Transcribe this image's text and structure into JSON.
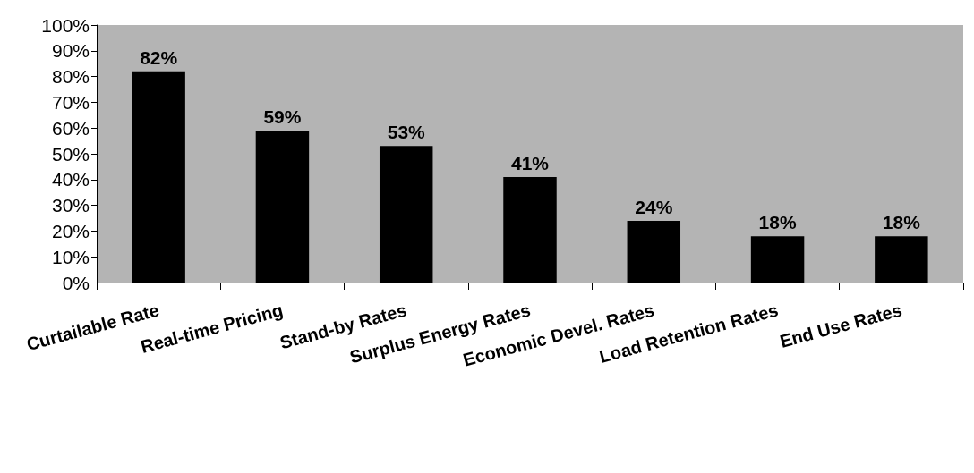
{
  "chart_data": {
    "type": "bar",
    "categories": [
      "Curtailable Rate",
      "Real-time Pricing",
      "Stand-by Rates",
      "Surplus Energy Rates",
      "Economic Devel. Rates",
      "Load Retention Rates",
      "End Use Rates"
    ],
    "values": [
      82,
      59,
      53,
      41,
      24,
      18,
      18
    ],
    "value_labels": [
      "82%",
      "59%",
      "53%",
      "41%",
      "24%",
      "18%",
      "18%"
    ],
    "color": "#000000",
    "ylim": [
      0,
      100
    ],
    "yticks": [
      {
        "value": 0,
        "label": "0%"
      },
      {
        "value": 10,
        "label": "10%"
      },
      {
        "value": 20,
        "label": "20%"
      },
      {
        "value": 30,
        "label": "30%"
      },
      {
        "value": 40,
        "label": "40%"
      },
      {
        "value": 50,
        "label": "50%"
      },
      {
        "value": 60,
        "label": "60%"
      },
      {
        "value": 70,
        "label": "70%"
      },
      {
        "value": 80,
        "label": "80%"
      },
      {
        "value": 90,
        "label": "90%"
      },
      {
        "value": 100,
        "label": "100%"
      }
    ],
    "grid": false
  }
}
